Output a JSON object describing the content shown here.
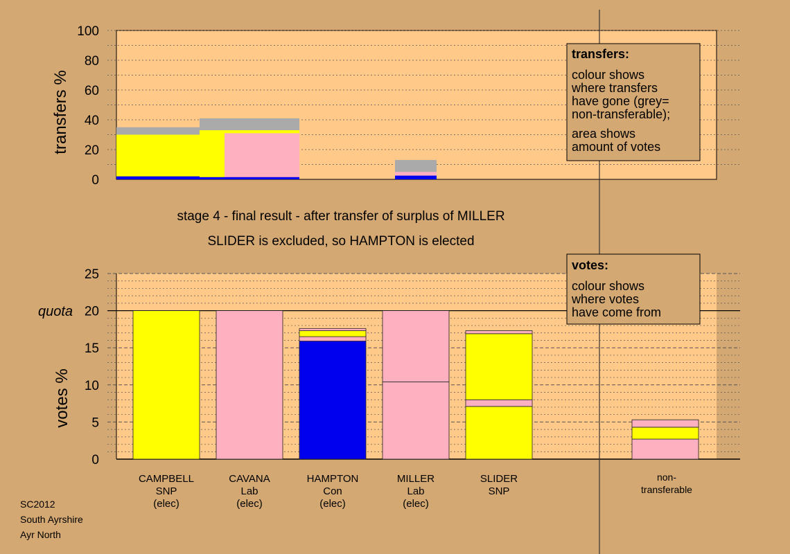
{
  "colors": {
    "background": "#d4a872",
    "panel": "#ffc98a",
    "SNP": "#ffff00",
    "Lab": "#ffb0c0",
    "Con": "#0000ee",
    "nontransferable": "#aaaaaa"
  },
  "caption": {
    "line1": "stage 4 - final result - after transfer of surplus of MILLER",
    "line2": "SLIDER is excluded, so HAMPTON is elected"
  },
  "quota_label": "quota",
  "footer": [
    "SC2012",
    "South Ayrshire",
    "Ayr North"
  ],
  "legends": {
    "transfers": {
      "title": "transfers:",
      "lines": [
        "colour shows",
        "where transfers",
        "have gone (grey=",
        "non-transferable);",
        "area shows",
        "amount of votes"
      ]
    },
    "votes": {
      "title": "votes:",
      "lines": [
        "colour shows",
        "where votes",
        "have come from"
      ]
    }
  },
  "candidates": [
    {
      "lines": [
        "CAMPBELL",
        "SNP",
        "(elec)"
      ]
    },
    {
      "lines": [
        "CAVANA",
        "Lab",
        "(elec)"
      ]
    },
    {
      "lines": [
        "HAMPTON",
        "Con",
        "(elec)"
      ]
    },
    {
      "lines": [
        "MILLER",
        "Lab",
        "(elec)"
      ]
    },
    {
      "lines": [
        "SLIDER",
        "SNP"
      ]
    },
    {
      "lines": [
        "non-",
        "transferable"
      ]
    }
  ],
  "chart_data": [
    {
      "type": "bar",
      "name": "transfers",
      "ylabel": "transfers %",
      "ylim": [
        0,
        100
      ],
      "yticks": [
        0,
        20,
        40,
        60,
        80,
        100
      ],
      "grid": true,
      "blocks": [
        {
          "x": [
            0.0,
            1.1
          ],
          "y": [
            0,
            35
          ],
          "color": "nontransferable"
        },
        {
          "x": [
            0.0,
            1.1
          ],
          "y": [
            0,
            30
          ],
          "color": "SNP"
        },
        {
          "x": [
            0.0,
            1.1
          ],
          "y": [
            0,
            2
          ],
          "color": "Con"
        },
        {
          "x": [
            1.0,
            2.2
          ],
          "y": [
            0,
            41
          ],
          "color": "nontransferable"
        },
        {
          "x": [
            1.0,
            2.2
          ],
          "y": [
            0,
            33
          ],
          "color": "SNP"
        },
        {
          "x": [
            1.3,
            2.2
          ],
          "y": [
            0,
            31
          ],
          "color": "Lab"
        },
        {
          "x": [
            1.0,
            2.2
          ],
          "y": [
            0,
            1.5
          ],
          "color": "Con"
        },
        {
          "x": [
            3.35,
            3.85
          ],
          "y": [
            0,
            13
          ],
          "color": "nontransferable"
        },
        {
          "x": [
            3.35,
            3.85
          ],
          "y": [
            0,
            5
          ],
          "color": "Lab"
        },
        {
          "x": [
            3.35,
            3.85
          ],
          "y": [
            0,
            2.5
          ],
          "color": "Con"
        }
      ]
    },
    {
      "type": "bar",
      "name": "votes",
      "ylabel": "votes %",
      "ylim": [
        0,
        25
      ],
      "yticks": [
        0,
        5,
        10,
        15,
        20,
        25
      ],
      "quota": 20,
      "grid": true,
      "bars": [
        {
          "segments": [
            {
              "value": 20,
              "color": "SNP"
            }
          ]
        },
        {
          "segments": [
            {
              "value": 20,
              "color": "Lab"
            }
          ]
        },
        {
          "segments": [
            {
              "value": 15.9,
              "color": "Con"
            },
            {
              "value": 0.6,
              "color": "Lab"
            },
            {
              "value": 0.8,
              "color": "SNP"
            },
            {
              "value": 0.3,
              "color": "Lab"
            }
          ]
        },
        {
          "segments": [
            {
              "value": 10.4,
              "color": "Lab"
            },
            {
              "value": 9.6,
              "color": "Lab"
            }
          ]
        },
        {
          "segments": [
            {
              "value": 7.1,
              "color": "SNP"
            },
            {
              "value": 0.9,
              "color": "Lab"
            },
            {
              "value": 8.9,
              "color": "SNP"
            },
            {
              "value": 0.4,
              "color": "Lab"
            }
          ]
        },
        {
          "segments": []
        },
        {
          "segments": [
            {
              "value": 2.7,
              "color": "Lab"
            },
            {
              "value": 1.6,
              "color": "SNP"
            },
            {
              "value": 1.0,
              "color": "Lab"
            }
          ]
        }
      ]
    }
  ]
}
